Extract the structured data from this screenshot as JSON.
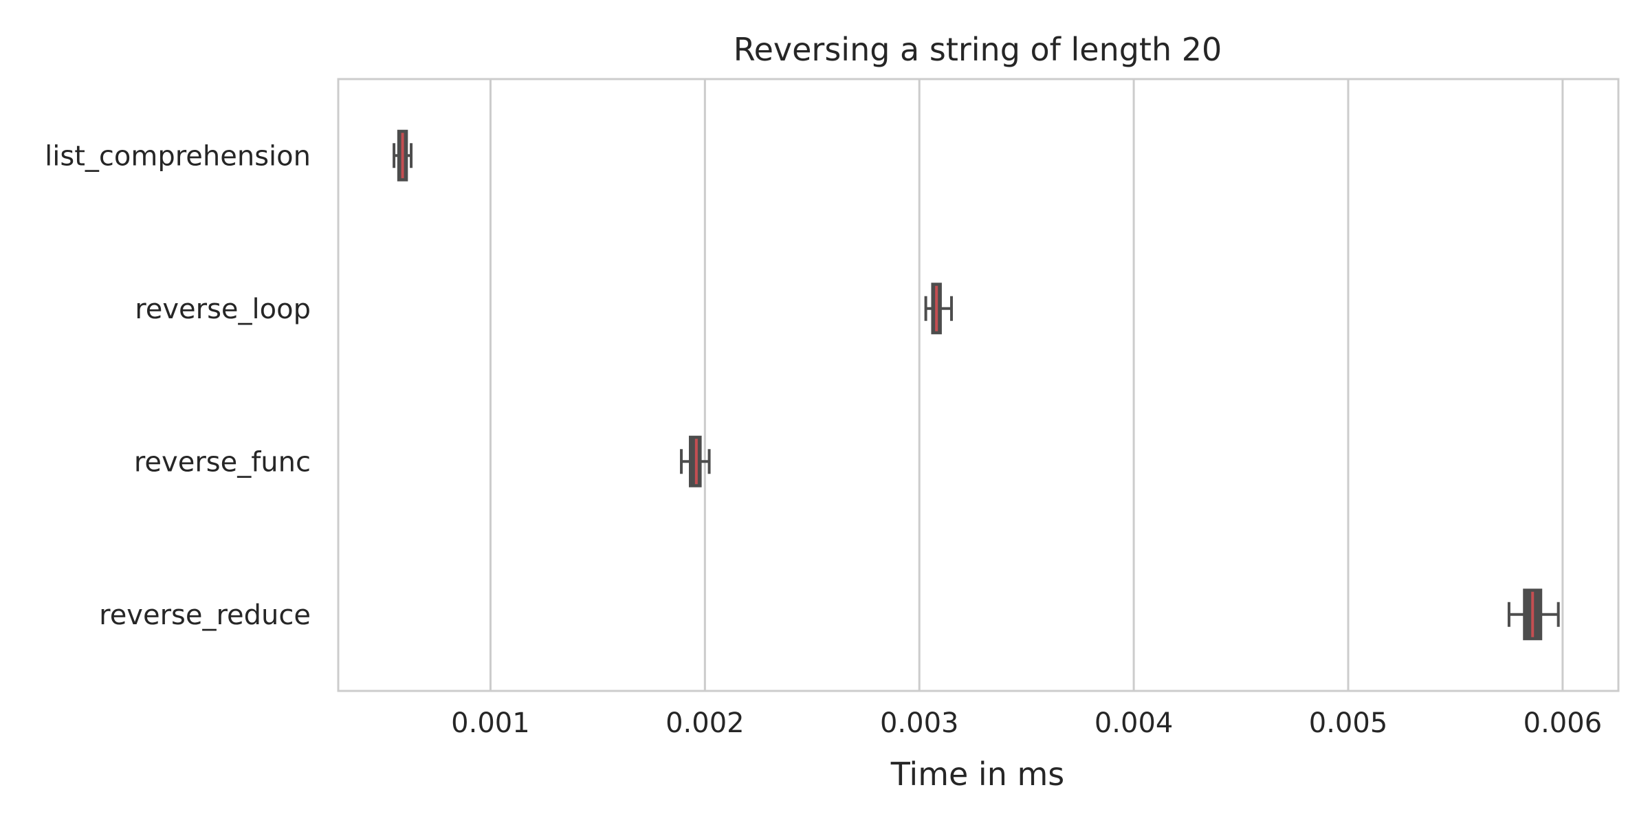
{
  "chart_data": {
    "type": "boxplot",
    "orientation": "horizontal",
    "title": "Reversing a string of length 20",
    "xlabel": "Time in ms",
    "ylabel": "",
    "xlim": [
      0.00029,
      0.00626
    ],
    "x_ticks": [
      0.001,
      0.002,
      0.003,
      0.004,
      0.005,
      0.006
    ],
    "x_tick_labels": [
      "0.001",
      "0.002",
      "0.003",
      "0.004",
      "0.005",
      "0.006"
    ],
    "categories": [
      "list_comprehension",
      "reverse_loop",
      "reverse_func",
      "reverse_reduce"
    ],
    "boxes": [
      {
        "category": "list_comprehension",
        "whisker_low": 0.00055,
        "q1": 0.00057,
        "median": 0.00059,
        "q3": 0.00061,
        "whisker_high": 0.00063
      },
      {
        "category": "reverse_loop",
        "whisker_low": 0.00303,
        "q1": 0.00306,
        "median": 0.00308,
        "q3": 0.0031,
        "whisker_high": 0.00315
      },
      {
        "category": "reverse_func",
        "whisker_low": 0.00189,
        "q1": 0.00193,
        "median": 0.00196,
        "q3": 0.00198,
        "whisker_high": 0.00202
      },
      {
        "category": "reverse_reduce",
        "whisker_low": 0.00575,
        "q1": 0.00582,
        "median": 0.00586,
        "q3": 0.0059,
        "whisker_high": 0.00598
      }
    ],
    "grid": {
      "x": true,
      "y": false
    },
    "colors": {
      "box_edge": "#4d4d4d",
      "box_fill": "#4d4d4d",
      "median_line": "#c44e52",
      "grid": "#cccccc",
      "spine": "#cccccc",
      "text": "#262626"
    }
  }
}
